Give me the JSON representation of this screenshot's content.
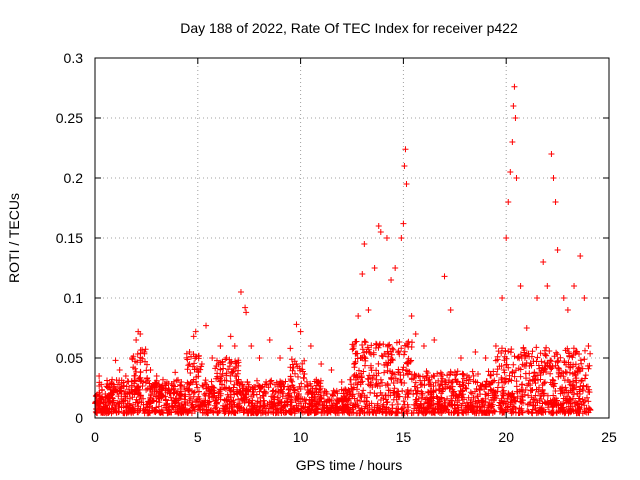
{
  "chart_data": {
    "type": "scatter",
    "title": "Day 188 of 2022, Rate Of TEC Index for receiver p422",
    "xlabel": "GPS time / hours",
    "ylabel": "ROTI / TECUs",
    "xlim": [
      0,
      25
    ],
    "ylim": [
      0,
      0.3
    ],
    "xticks": [
      0,
      5,
      10,
      15,
      20,
      25
    ],
    "xtick_labels": [
      "0",
      "5",
      "10",
      "15",
      "20",
      "25"
    ],
    "yticks": [
      0,
      0.05,
      0.1,
      0.15,
      0.2,
      0.25,
      0.3
    ],
    "ytick_labels": [
      "0",
      "0.05",
      "0.1",
      "0.15",
      "0.2",
      "0.25",
      "0.3"
    ],
    "grid": true,
    "marker": "+",
    "series_color": "#ff0000",
    "series": [
      {
        "name": "ROTI",
        "description_points": "dense baseline 0.005-0.03 across 0-24 h; representative extracted/estimated points below",
        "points": [
          [
            0.1,
            0.012
          ],
          [
            0.2,
            0.035
          ],
          [
            0.3,
            0.028
          ],
          [
            0.5,
            0.02
          ],
          [
            0.8,
            0.03
          ],
          [
            1.0,
            0.048
          ],
          [
            1.2,
            0.04
          ],
          [
            1.5,
            0.035
          ],
          [
            1.8,
            0.05
          ],
          [
            2.0,
            0.065
          ],
          [
            2.1,
            0.072
          ],
          [
            2.2,
            0.07
          ],
          [
            2.4,
            0.055
          ],
          [
            2.7,
            0.04
          ],
          [
            3.0,
            0.035
          ],
          [
            3.5,
            0.03
          ],
          [
            3.9,
            0.038
          ],
          [
            4.2,
            0.03
          ],
          [
            4.6,
            0.055
          ],
          [
            4.8,
            0.068
          ],
          [
            4.9,
            0.072
          ],
          [
            5.2,
            0.045
          ],
          [
            5.4,
            0.077
          ],
          [
            5.7,
            0.05
          ],
          [
            6.1,
            0.06
          ],
          [
            6.4,
            0.05
          ],
          [
            6.6,
            0.068
          ],
          [
            6.8,
            0.06
          ],
          [
            7.1,
            0.105
          ],
          [
            7.3,
            0.092
          ],
          [
            7.35,
            0.088
          ],
          [
            7.6,
            0.06
          ],
          [
            8.0,
            0.05
          ],
          [
            8.5,
            0.065
          ],
          [
            9.0,
            0.05
          ],
          [
            9.5,
            0.058
          ],
          [
            9.8,
            0.078
          ],
          [
            10.0,
            0.072
          ],
          [
            10.5,
            0.06
          ],
          [
            11.0,
            0.045
          ],
          [
            11.5,
            0.04
          ],
          [
            12.0,
            0.03
          ],
          [
            12.6,
            0.045
          ],
          [
            12.8,
            0.085
          ],
          [
            13.0,
            0.12
          ],
          [
            13.1,
            0.145
          ],
          [
            13.3,
            0.09
          ],
          [
            13.6,
            0.125
          ],
          [
            13.8,
            0.16
          ],
          [
            13.9,
            0.155
          ],
          [
            14.2,
            0.15
          ],
          [
            14.4,
            0.115
          ],
          [
            14.6,
            0.125
          ],
          [
            14.9,
            0.15
          ],
          [
            15.0,
            0.162
          ],
          [
            15.05,
            0.21
          ],
          [
            15.1,
            0.224
          ],
          [
            15.15,
            0.195
          ],
          [
            15.4,
            0.085
          ],
          [
            15.6,
            0.07
          ],
          [
            16.0,
            0.06
          ],
          [
            16.5,
            0.065
          ],
          [
            17.0,
            0.118
          ],
          [
            17.3,
            0.09
          ],
          [
            17.8,
            0.05
          ],
          [
            18.5,
            0.055
          ],
          [
            19.0,
            0.05
          ],
          [
            19.5,
            0.06
          ],
          [
            19.8,
            0.1
          ],
          [
            20.0,
            0.15
          ],
          [
            20.1,
            0.18
          ],
          [
            20.2,
            0.205
          ],
          [
            20.3,
            0.23
          ],
          [
            20.35,
            0.26
          ],
          [
            20.4,
            0.276
          ],
          [
            20.45,
            0.25
          ],
          [
            20.5,
            0.2
          ],
          [
            20.7,
            0.11
          ],
          [
            21.0,
            0.075
          ],
          [
            21.5,
            0.1
          ],
          [
            21.8,
            0.13
          ],
          [
            22.0,
            0.11
          ],
          [
            22.2,
            0.22
          ],
          [
            22.3,
            0.2
          ],
          [
            22.4,
            0.18
          ],
          [
            22.5,
            0.14
          ],
          [
            22.8,
            0.1
          ],
          [
            23.0,
            0.09
          ],
          [
            23.3,
            0.11
          ],
          [
            23.6,
            0.135
          ],
          [
            23.8,
            0.1
          ],
          [
            24.0,
            0.06
          ]
        ]
      }
    ]
  }
}
